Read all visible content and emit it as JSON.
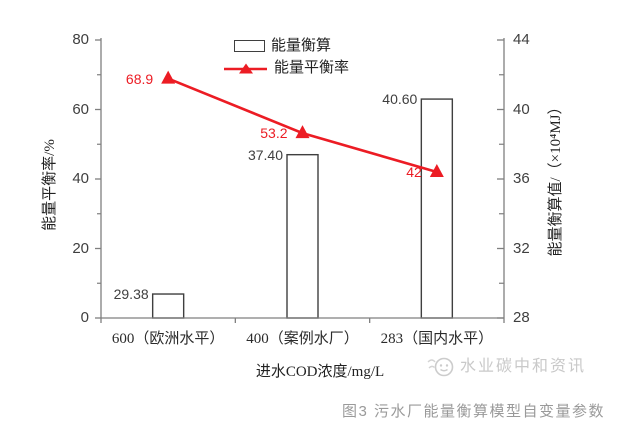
{
  "chart_data": {
    "type": "bar+line",
    "categories": [
      "600（欧洲水平）",
      "400（案例水厂）",
      "283（国内水平）"
    ],
    "series": [
      {
        "name": "能量衡算",
        "type": "bar",
        "axis": "right",
        "values": [
          29.38,
          37.4,
          40.6
        ],
        "labels": [
          "29.38",
          "37.40",
          "40.60"
        ]
      },
      {
        "name": "能量平衡率",
        "type": "line",
        "axis": "left",
        "values": [
          68.9,
          53.2,
          42
        ],
        "labels": [
          "68.9",
          "53.2",
          "42"
        ]
      }
    ],
    "left_axis": {
      "title": "能量平衡率/%",
      "min": 0,
      "max": 80,
      "major_ticks": [
        0,
        20,
        40,
        60,
        80
      ],
      "minor_ticks": [
        10,
        30,
        50,
        70
      ]
    },
    "right_axis": {
      "title": "能量衡算值/（×10⁴MJ）",
      "min": 28,
      "max": 44,
      "major_ticks": [
        28,
        32,
        36,
        40,
        44
      ],
      "minor_ticks": [
        30,
        34,
        38,
        42
      ]
    },
    "x_axis": {
      "title": "进水COD浓度/mg/L"
    },
    "legend": {
      "position": "top",
      "entries": [
        "能量衡算",
        "能量平衡率"
      ]
    },
    "grid": false,
    "colors": {
      "line": "#ec1c24",
      "bar_fill": "#ffffff",
      "bar_stroke": "#3f3f3f",
      "axis": "#7f7f7f",
      "caption": "#9a9a9a",
      "watermark": "#c9c9c9"
    }
  },
  "caption": "图3 污水厂能量衡算模型自变量参数",
  "watermark": {
    "text": "水业碳中和资讯"
  }
}
